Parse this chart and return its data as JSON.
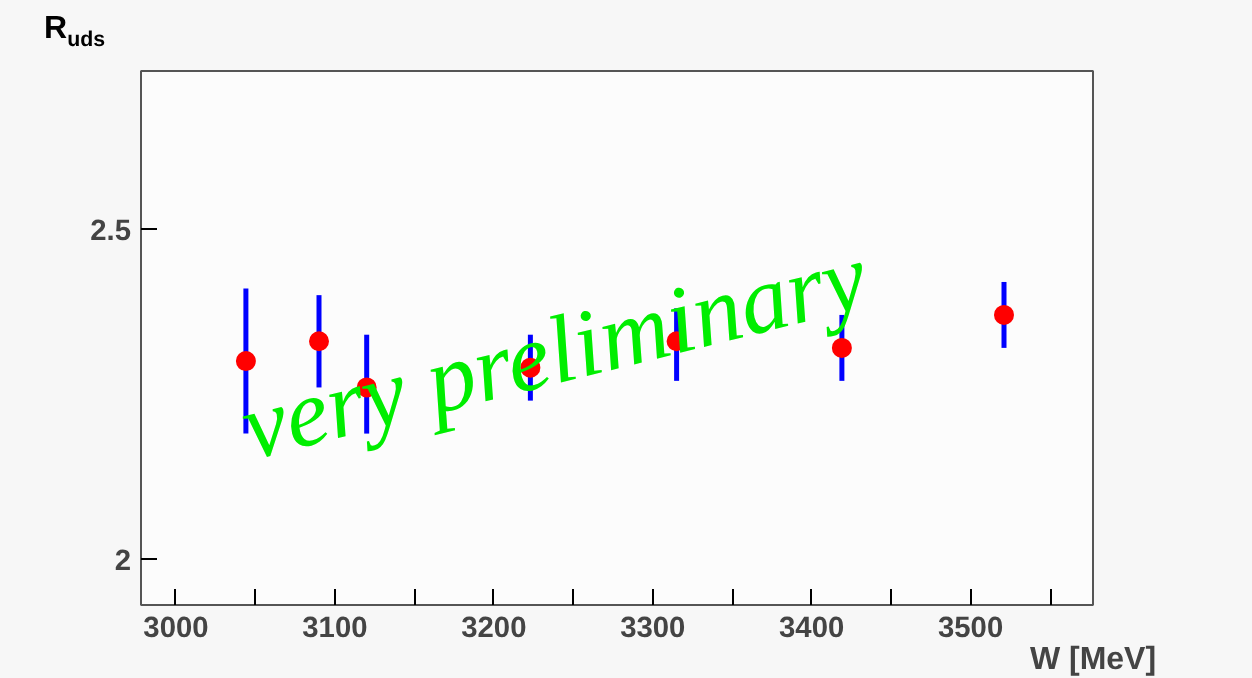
{
  "chart_data": {
    "type": "scatter",
    "xlabel": "W [MeV]",
    "ylabel": "R$_{uds}$",
    "x": [
      3044,
      3090,
      3120,
      3223,
      3315,
      3419,
      3521
    ],
    "series": [
      {
        "color": "#ff0000",
        "values": [
          2.3,
          2.33,
          2.26,
          2.29,
          2.33,
          2.32,
          2.37
        ],
        "errors": [
          [
            2.19,
            2.41
          ],
          [
            2.26,
            2.4
          ],
          [
            2.19,
            2.34
          ],
          [
            2.24,
            2.34
          ],
          [
            2.27,
            2.38
          ],
          [
            2.27,
            2.37
          ],
          [
            2.32,
            2.42
          ]
        ]
      }
    ],
    "xlim": [
      2978,
      3577
    ],
    "ylim": [
      1.93,
      2.74
    ],
    "xticks": [
      3000,
      {
        "value": 3050,
        "label": null
      },
      3100,
      {
        "value": 3150,
        "label": null
      },
      3200,
      {
        "value": 3250,
        "label": null
      },
      3300,
      {
        "value": 3350,
        "label": null
      },
      3400,
      {
        "value": 3450,
        "label": null
      },
      3500,
      {
        "value": 3550,
        "label": null
      }
    ],
    "yticks": [
      2,
      2.5
    ],
    "annotations": [
      "very preliminary"
    ],
    "marker": "circle",
    "grid": false
  }
}
